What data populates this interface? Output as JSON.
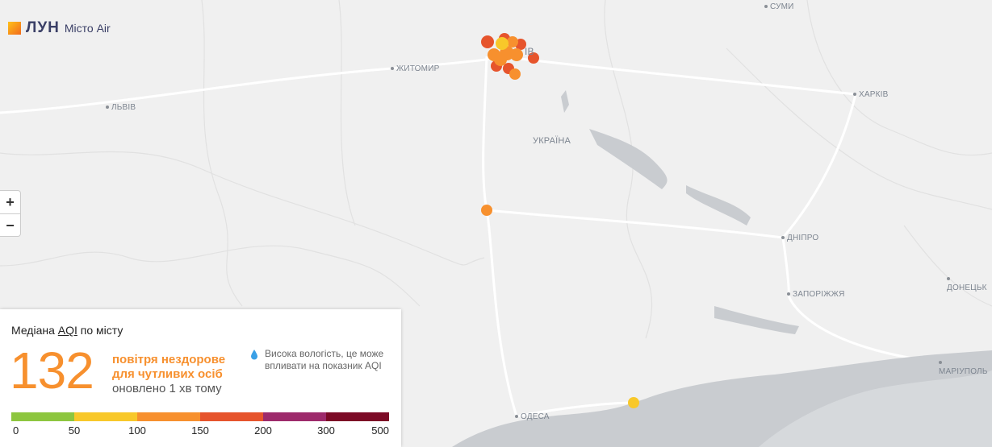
{
  "logo": {
    "mark": "ЛУН",
    "name": "Місто Air"
  },
  "map": {
    "cities": [
      "СУМИ",
      "ЖИТОМИР",
      "ЛЬВІВ",
      "ІВ",
      "ХАРКІВ",
      "УКРАЇНА",
      "ДНІПРО",
      "ЗАПОРІЖЖЯ",
      "ДОНЕЦЬК",
      "МАРІУПОЛЬ",
      "ОДЕСА"
    ]
  },
  "zoom": {
    "in": "+",
    "out": "−"
  },
  "panel": {
    "title_before": "Медіана ",
    "title_link": "AQI",
    "title_after": " по місту",
    "value": 132,
    "status_line1": "повітря нездорове",
    "status_line2": "для чутливих осіб",
    "updated": "оновлено 1 хв тому",
    "note_line1": "Висока вологість, це може",
    "note_line2": "впливати на показник AQI",
    "scale": {
      "ticks": [
        0,
        50,
        100,
        150,
        200,
        300,
        500
      ],
      "colors": [
        "#8dc63f",
        "#f8c82a",
        "#f7902e",
        "#e6542c",
        "#9d2a6b",
        "#7c0a26"
      ]
    }
  }
}
